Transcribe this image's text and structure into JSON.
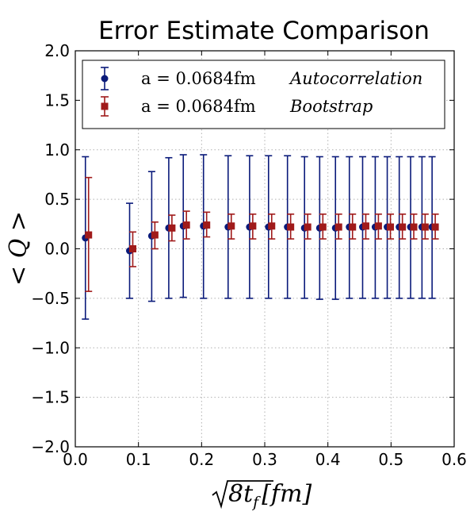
{
  "chart_data": {
    "type": "scatter",
    "title": "Error Estimate Comparison",
    "xlabel": "√8t_f [fm]",
    "ylabel": "< Q >",
    "xlim": [
      0.0,
      0.6
    ],
    "ylim": [
      -2.0,
      2.0
    ],
    "xticks": [
      "0.0",
      "0.1",
      "0.2",
      "0.3",
      "0.4",
      "0.5",
      "0.6"
    ],
    "yticks": [
      "2.0",
      "1.5",
      "1.0",
      "0.5",
      "0.0",
      "−0.5",
      "−1.0",
      "−1.5",
      "−2.0"
    ],
    "grid": true,
    "legend_position": "top",
    "series": [
      {
        "name": "a = 0.0684fm    Autocorrelation",
        "label_left": "a = 0.0684fm",
        "label_right": "Autocorrelation",
        "color": "#0a1a7a",
        "marker": "circle",
        "points": [
          {
            "x": 0.016,
            "y": 0.11,
            "lo": -0.71,
            "hi": 0.93
          },
          {
            "x": 0.086,
            "y": -0.02,
            "lo": -0.5,
            "hi": 0.46
          },
          {
            "x": 0.121,
            "y": 0.13,
            "lo": -0.53,
            "hi": 0.78
          },
          {
            "x": 0.148,
            "y": 0.21,
            "lo": -0.5,
            "hi": 0.92
          },
          {
            "x": 0.171,
            "y": 0.23,
            "lo": -0.49,
            "hi": 0.95
          },
          {
            "x": 0.203,
            "y": 0.23,
            "lo": -0.5,
            "hi": 0.95
          },
          {
            "x": 0.242,
            "y": 0.22,
            "lo": -0.5,
            "hi": 0.94
          },
          {
            "x": 0.276,
            "y": 0.22,
            "lo": -0.5,
            "hi": 0.94
          },
          {
            "x": 0.306,
            "y": 0.22,
            "lo": -0.5,
            "hi": 0.94
          },
          {
            "x": 0.336,
            "y": 0.22,
            "lo": -0.5,
            "hi": 0.94
          },
          {
            "x": 0.363,
            "y": 0.21,
            "lo": -0.5,
            "hi": 0.93
          },
          {
            "x": 0.387,
            "y": 0.21,
            "lo": -0.51,
            "hi": 0.93
          },
          {
            "x": 0.412,
            "y": 0.21,
            "lo": -0.51,
            "hi": 0.93
          },
          {
            "x": 0.434,
            "y": 0.22,
            "lo": -0.5,
            "hi": 0.93
          },
          {
            "x": 0.455,
            "y": 0.22,
            "lo": -0.5,
            "hi": 0.93
          },
          {
            "x": 0.475,
            "y": 0.22,
            "lo": -0.5,
            "hi": 0.93
          },
          {
            "x": 0.494,
            "y": 0.22,
            "lo": -0.5,
            "hi": 0.93
          },
          {
            "x": 0.513,
            "y": 0.22,
            "lo": -0.5,
            "hi": 0.93
          },
          {
            "x": 0.531,
            "y": 0.22,
            "lo": -0.5,
            "hi": 0.93
          },
          {
            "x": 0.549,
            "y": 0.22,
            "lo": -0.5,
            "hi": 0.93
          },
          {
            "x": 0.565,
            "y": 0.22,
            "lo": -0.5,
            "hi": 0.93
          }
        ]
      },
      {
        "name": "a = 0.0684fm    Bootstrap",
        "label_left": "a = 0.0684fm",
        "label_right": "Bootstrap",
        "color": "#a01a1a",
        "marker": "square",
        "points": [
          {
            "x": 0.021,
            "y": 0.14,
            "lo": -0.43,
            "hi": 0.72
          },
          {
            "x": 0.091,
            "y": 0.0,
            "lo": -0.18,
            "hi": 0.17
          },
          {
            "x": 0.126,
            "y": 0.14,
            "lo": 0.0,
            "hi": 0.27
          },
          {
            "x": 0.153,
            "y": 0.21,
            "lo": 0.08,
            "hi": 0.34
          },
          {
            "x": 0.176,
            "y": 0.24,
            "lo": 0.1,
            "hi": 0.38
          },
          {
            "x": 0.208,
            "y": 0.24,
            "lo": 0.12,
            "hi": 0.37
          },
          {
            "x": 0.247,
            "y": 0.23,
            "lo": 0.1,
            "hi": 0.35
          },
          {
            "x": 0.281,
            "y": 0.23,
            "lo": 0.1,
            "hi": 0.35
          },
          {
            "x": 0.311,
            "y": 0.23,
            "lo": 0.1,
            "hi": 0.35
          },
          {
            "x": 0.341,
            "y": 0.22,
            "lo": 0.1,
            "hi": 0.35
          },
          {
            "x": 0.368,
            "y": 0.22,
            "lo": 0.1,
            "hi": 0.35
          },
          {
            "x": 0.392,
            "y": 0.22,
            "lo": 0.1,
            "hi": 0.35
          },
          {
            "x": 0.417,
            "y": 0.22,
            "lo": 0.1,
            "hi": 0.35
          },
          {
            "x": 0.439,
            "y": 0.22,
            "lo": 0.1,
            "hi": 0.35
          },
          {
            "x": 0.46,
            "y": 0.23,
            "lo": 0.1,
            "hi": 0.35
          },
          {
            "x": 0.48,
            "y": 0.23,
            "lo": 0.1,
            "hi": 0.35
          },
          {
            "x": 0.499,
            "y": 0.22,
            "lo": 0.1,
            "hi": 0.35
          },
          {
            "x": 0.518,
            "y": 0.22,
            "lo": 0.1,
            "hi": 0.35
          },
          {
            "x": 0.536,
            "y": 0.22,
            "lo": 0.1,
            "hi": 0.35
          },
          {
            "x": 0.554,
            "y": 0.22,
            "lo": 0.1,
            "hi": 0.35
          },
          {
            "x": 0.57,
            "y": 0.22,
            "lo": 0.1,
            "hi": 0.35
          }
        ]
      }
    ]
  }
}
